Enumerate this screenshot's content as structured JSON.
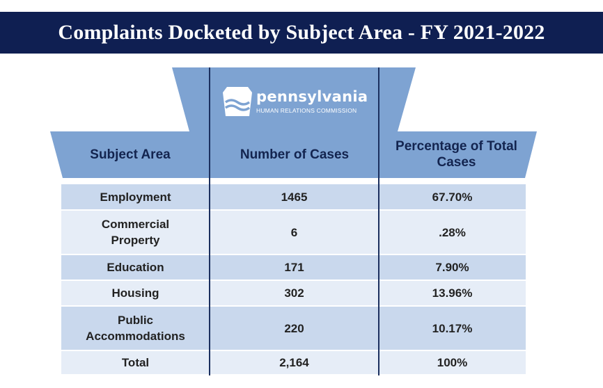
{
  "title": "Complaints Docketed by Subject Area - FY 2021-2022",
  "logo": {
    "name": "pennsylvania",
    "subtitle": "HUMAN RELATIONS COMMISSION",
    "icon": "keystone-icon"
  },
  "colors": {
    "title_bar": "#0f1f52",
    "header_fill": "#7ea3d2",
    "row_dark": "#c9d8ed",
    "row_light": "#e6edf7",
    "divider": "#1b2f5e",
    "header_text": "#13244f"
  },
  "table": {
    "headers": {
      "subject": "Subject Area",
      "cases": "Number of Cases",
      "percent": "Percentage of Total Cases"
    },
    "rows": [
      {
        "subject": "Employment",
        "cases": "1465",
        "percent": "67.70%"
      },
      {
        "subject": "Commercial Property",
        "cases": "6",
        "percent": ".28%"
      },
      {
        "subject": "Education",
        "cases": "171",
        "percent": "7.90%"
      },
      {
        "subject": "Housing",
        "cases": "302",
        "percent": "13.96%"
      },
      {
        "subject": "Public Accommodations",
        "cases": "220",
        "percent": "10.17%"
      },
      {
        "subject": "Total",
        "cases": "2,164",
        "percent": "100%"
      }
    ]
  }
}
